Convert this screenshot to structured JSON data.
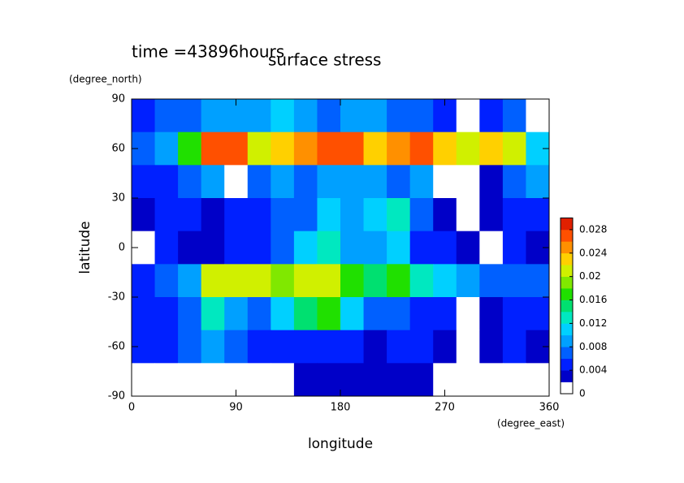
{
  "chart_data": {
    "type": "contour",
    "title": "surface stress",
    "subtitle": "time =43896hours",
    "x_label": "longitude",
    "x_unit": "(degree_east)",
    "y_label": "latitude",
    "y_unit": "(degree_north)",
    "xlim": [
      0,
      360
    ],
    "xticks": [
      0,
      90,
      180,
      270,
      360
    ],
    "ylim": [
      -90,
      90
    ],
    "yticks": [
      90,
      60,
      30,
      0,
      -30,
      -60,
      -90
    ],
    "lon": [
      10,
      30,
      50,
      70,
      90,
      110,
      130,
      150,
      170,
      190,
      210,
      230,
      250,
      270,
      290,
      310,
      330,
      350
    ],
    "lat": [
      80,
      60,
      40,
      20,
      0,
      -20,
      -40,
      -60,
      -80
    ],
    "values": [
      [
        0.004,
        0.006,
        0.006,
        0.008,
        0.008,
        0.008,
        0.01,
        0.008,
        0.006,
        0.008,
        0.008,
        0.006,
        0.006,
        0.004,
        0,
        0.004,
        0.006,
        0
      ],
      [
        0.006,
        0.008,
        0.016,
        0.026,
        0.026,
        0.02,
        0.022,
        0.024,
        0.026,
        0.026,
        0.022,
        0.024,
        0.026,
        0.022,
        0.02,
        0.022,
        0.02,
        0.01
      ],
      [
        0.004,
        0.004,
        0.006,
        0.008,
        0,
        0.006,
        0.008,
        0.006,
        0.008,
        0.008,
        0.008,
        0.006,
        0.008,
        0,
        0,
        0.002,
        0.006,
        0.008
      ],
      [
        0.002,
        0.004,
        0.004,
        0.002,
        0.004,
        0.004,
        0.006,
        0.006,
        0.01,
        0.008,
        0.01,
        0.012,
        0.006,
        0.002,
        0,
        0.002,
        0.004,
        0.004
      ],
      [
        0,
        0.004,
        0.002,
        0.002,
        0.004,
        0.004,
        0.006,
        0.01,
        0.012,
        0.008,
        0.008,
        0.01,
        0.004,
        0.004,
        0.002,
        0,
        0.004,
        0.002
      ],
      [
        0.004,
        0.006,
        0.008,
        0.02,
        0.02,
        0.02,
        0.018,
        0.02,
        0.02,
        0.016,
        0.014,
        0.016,
        0.012,
        0.01,
        0.008,
        0.006,
        0.006,
        0.006
      ],
      [
        0.004,
        0.004,
        0.006,
        0.012,
        0.008,
        0.006,
        0.01,
        0.014,
        0.016,
        0.01,
        0.006,
        0.006,
        0.004,
        0.004,
        0,
        0.002,
        0.004,
        0.004
      ],
      [
        0.004,
        0.004,
        0.006,
        0.008,
        0.006,
        0.004,
        0.004,
        0.004,
        0.004,
        0.004,
        0.002,
        0.004,
        0.004,
        0.002,
        0,
        0.002,
        0.004,
        0.002
      ],
      [
        0,
        0,
        0,
        0,
        0,
        0,
        0,
        0.002,
        0.002,
        0.002,
        0.002,
        0.002,
        0.002,
        0,
        0,
        0,
        0,
        0
      ]
    ],
    "zlim": [
      0,
      0.03
    ],
    "zticks": [
      0,
      0.004,
      0.008,
      0.012,
      0.016,
      0.02,
      0.024,
      0.028
    ],
    "colors": [
      "#ffffff",
      "#0000c8",
      "#0020ff",
      "#0060ff",
      "#00a0ff",
      "#00d0ff",
      "#00e8c0",
      "#00e070",
      "#20e000",
      "#80e800",
      "#d0f000",
      "#ffd000",
      "#ff9000",
      "#ff5000",
      "#e02000"
    ]
  }
}
